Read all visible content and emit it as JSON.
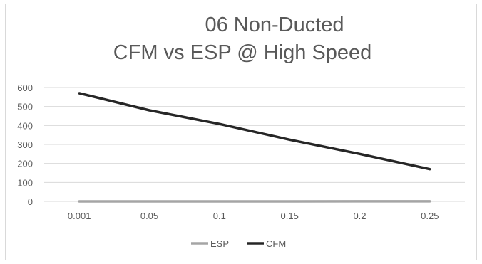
{
  "chart_data": {
    "type": "line",
    "title_lines": [
      "06 Non-Ducted",
      "CFM vs ESP @ High Speed"
    ],
    "categories": [
      "0.001",
      "0.05",
      "0.1",
      "0.15",
      "0.2",
      "0.25"
    ],
    "series": [
      {
        "name": "ESP",
        "values": [
          0.001,
          0.05,
          0.1,
          0.15,
          0.2,
          0.25
        ],
        "color": "#a5a5a5"
      },
      {
        "name": "CFM",
        "values": [
          570,
          480,
          408,
          325,
          250,
          170
        ],
        "color": "#262626"
      }
    ],
    "yticks": [
      "0",
      "100",
      "200",
      "300",
      "400",
      "500",
      "600"
    ],
    "ylim": [
      0,
      600
    ],
    "xlabel": "",
    "ylabel": "",
    "grid": true,
    "legend_position": "bottom",
    "grid_color": "#d9d9d9",
    "text_color": "#595959"
  }
}
